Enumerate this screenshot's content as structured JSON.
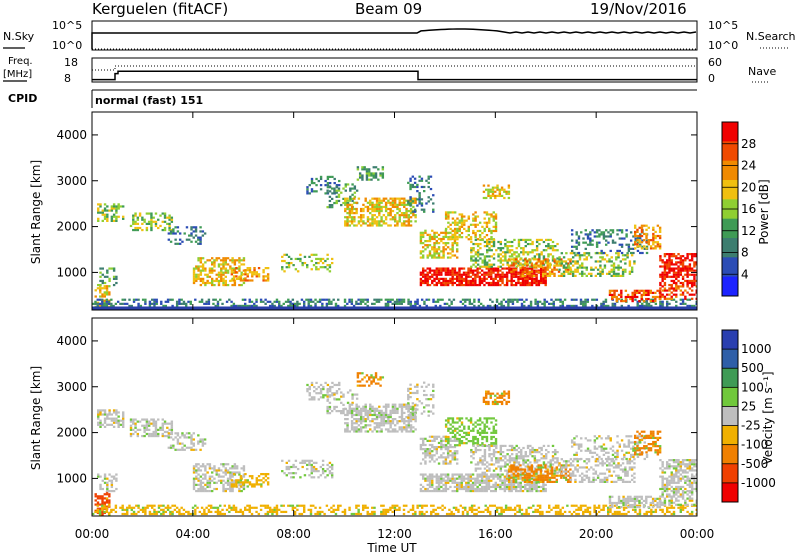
{
  "header": {
    "station": "Kerguelen (fitACF)",
    "beam": "Beam 09",
    "date": "19/Nov/2016"
  },
  "panels": {
    "nsky_label": "N.Sky",
    "nsky_top": "10^5",
    "nsky_bottom": "10^0",
    "nsearch_label": "N.Search",
    "freq_label_1": "Freq.",
    "freq_label_2": "[MHz]",
    "freq_top": "18",
    "freq_bottom": "8",
    "nave_label": "Nave",
    "nave_top": "60",
    "nave_bottom": "0",
    "cpid_label": "CPID",
    "cpid_value": "normal (fast) 151"
  },
  "colors": {
    "power_scale": [
      "#1c23ff",
      "#2b4cb5",
      "#3c7d6f",
      "#3f9b55",
      "#8fcf32",
      "#f0c010",
      "#f08a00",
      "#f04a00",
      "#f00000"
    ],
    "velocity_scale": [
      "#2a3fb0",
      "#2f5fa8",
      "#3f9b55",
      "#70c83b",
      "#bebebe",
      "#f0b000",
      "#f08000",
      "#f04000",
      "#f00000"
    ]
  },
  "chart_data": [
    {
      "type": "heatmap",
      "quantity": "Power",
      "ylabel": "Slant Range [km]",
      "ylim": [
        180,
        4500
      ],
      "yticks": [
        "1000",
        "2000",
        "3000",
        "4000"
      ],
      "colorbar_label": "Power [dB]",
      "colorbar_ticks": [
        "4",
        "8",
        "12",
        "16",
        "20",
        "24",
        "28"
      ],
      "colorbar_range": [
        0,
        32
      ]
    },
    {
      "type": "heatmap",
      "quantity": "Velocity",
      "ylabel": "Slant Range [km]",
      "ylim": [
        180,
        4500
      ],
      "yticks": [
        "1000",
        "2000",
        "3000",
        "4000"
      ],
      "colorbar_label": "Velocity [m s⁻¹]",
      "colorbar_ticks": [
        "1000",
        "500",
        "100",
        "25",
        "-25",
        "-100",
        "-500",
        "-1000"
      ]
    }
  ],
  "xaxis": {
    "label": "Time UT",
    "ticks": [
      "00:00",
      "04:00",
      "08:00",
      "12:00",
      "16:00",
      "20:00",
      "00:00"
    ]
  }
}
